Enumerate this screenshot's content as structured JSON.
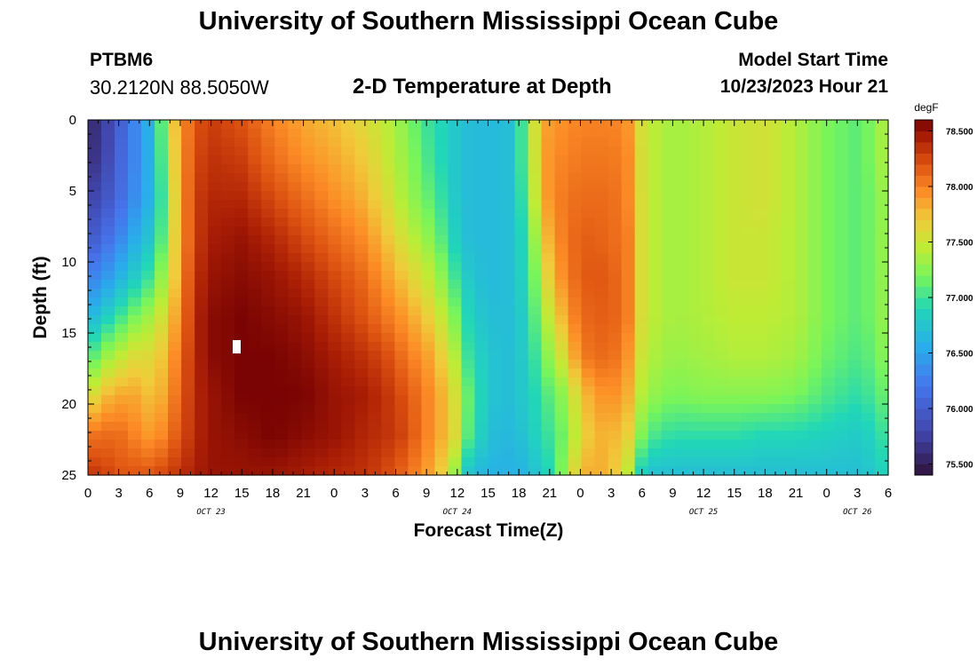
{
  "header": {
    "title": "University of Southern Mississippi Ocean Cube",
    "station_id": "PTBM6",
    "coordinates": "30.2120N  88.5050W",
    "chart_title": "2-D Temperature at Depth",
    "model_start_label": "Model Start Time",
    "model_start_value": "10/23/2023 Hour 21"
  },
  "footer": {
    "title": "University of Southern Mississippi Ocean Cube"
  },
  "chart_data": {
    "type": "heatmap",
    "title": "2-D Temperature at Depth",
    "xlabel": "Forecast Time(Z)",
    "ylabel": "Depth (ft)",
    "x_hours": [
      0,
      3,
      6,
      9,
      12,
      15,
      18,
      21,
      24,
      27,
      30,
      33,
      36,
      39,
      42,
      45,
      48,
      51,
      54,
      57,
      60,
      63,
      66,
      69,
      72,
      75,
      78
    ],
    "x_tick_labels": [
      "0",
      "3",
      "6",
      "9",
      "12",
      "15",
      "18",
      "21",
      "0",
      "3",
      "6",
      "9",
      "12",
      "15",
      "18",
      "21",
      "0",
      "3",
      "6",
      "9",
      "12",
      "15",
      "18",
      "21",
      "0",
      "3",
      "6"
    ],
    "date_labels": [
      {
        "label": "OCT 23",
        "hour": 12
      },
      {
        "label": "OCT 24",
        "hour": 36
      },
      {
        "label": "OCT 25",
        "hour": 60
      },
      {
        "label": "OCT 26",
        "hour": 75
      }
    ],
    "y_ticks": [
      0,
      5,
      10,
      15,
      20,
      25
    ],
    "ylim": [
      0,
      25
    ],
    "xlim": [
      0,
      78
    ],
    "colorbar": {
      "unit": "degF",
      "range": [
        75.4,
        78.6
      ],
      "tick_labels": [
        "78.500",
        "78.000",
        "77.500",
        "77.000",
        "76.500",
        "76.000",
        "75.500"
      ],
      "tick_values": [
        78.5,
        78.0,
        77.5,
        77.0,
        76.5,
        76.0,
        75.5
      ]
    },
    "columns": [
      {
        "t": 0,
        "temps": [
          75.55,
          75.6,
          75.75,
          75.95,
          76.25,
          76.6,
          77.0,
          77.5,
          78.05,
          78.35
        ]
      },
      {
        "t": 1.5,
        "temps": [
          75.7,
          75.75,
          75.9,
          76.1,
          76.4,
          76.8,
          77.3,
          77.75,
          78.1,
          78.3
        ]
      },
      {
        "t": 3,
        "temps": [
          76.0,
          76.05,
          76.1,
          76.3,
          76.6,
          77.0,
          77.45,
          77.85,
          78.1,
          78.2
        ]
      },
      {
        "t": 4.5,
        "temps": [
          76.3,
          76.3,
          76.35,
          76.55,
          76.8,
          77.2,
          77.6,
          77.85,
          78.0,
          78.2
        ]
      },
      {
        "t": 6,
        "temps": [
          76.6,
          76.6,
          76.6,
          76.75,
          77.0,
          77.35,
          77.6,
          77.75,
          77.9,
          78.2
        ]
      },
      {
        "t": 7,
        "temps": [
          77.0,
          76.95,
          76.9,
          77.0,
          77.25,
          77.5,
          77.7,
          77.8,
          77.95,
          78.25
        ]
      },
      {
        "t": 8,
        "temps": [
          77.6,
          77.5,
          77.4,
          77.45,
          77.5,
          77.7,
          77.85,
          77.95,
          78.1,
          78.3
        ]
      },
      {
        "t": 9,
        "temps": [
          77.9,
          77.9,
          77.9,
          77.9,
          77.95,
          78.0,
          78.1,
          78.15,
          78.2,
          78.35
        ]
      },
      {
        "t": 10.5,
        "temps": [
          78.2,
          78.25,
          78.3,
          78.3,
          78.35,
          78.4,
          78.4,
          78.4,
          78.4,
          78.45
        ]
      },
      {
        "t": 12,
        "temps": [
          78.3,
          78.35,
          78.4,
          78.45,
          78.5,
          78.55,
          78.55,
          78.5,
          78.5,
          78.5
        ]
      },
      {
        "t": 15,
        "temps": [
          78.2,
          78.3,
          78.4,
          78.5,
          78.55,
          78.6,
          78.6,
          78.6,
          78.55,
          78.5
        ]
      },
      {
        "t": 18,
        "temps": [
          78.0,
          78.1,
          78.25,
          78.4,
          78.5,
          78.55,
          78.6,
          78.6,
          78.6,
          78.5
        ]
      },
      {
        "t": 21,
        "temps": [
          77.85,
          77.95,
          78.1,
          78.25,
          78.4,
          78.5,
          78.55,
          78.6,
          78.55,
          78.45
        ]
      },
      {
        "t": 24,
        "temps": [
          77.75,
          77.85,
          77.95,
          78.1,
          78.25,
          78.35,
          78.45,
          78.5,
          78.5,
          78.4
        ]
      },
      {
        "t": 27,
        "temps": [
          77.6,
          77.7,
          77.8,
          77.95,
          78.1,
          78.2,
          78.35,
          78.45,
          78.4,
          78.35
        ]
      },
      {
        "t": 29,
        "temps": [
          77.45,
          77.5,
          77.6,
          77.75,
          77.9,
          78.05,
          78.25,
          78.35,
          78.35,
          78.25
        ]
      },
      {
        "t": 31,
        "temps": [
          77.25,
          77.3,
          77.35,
          77.5,
          77.7,
          77.9,
          78.05,
          78.2,
          78.25,
          78.1
        ]
      },
      {
        "t": 33,
        "temps": [
          77.0,
          77.05,
          77.15,
          77.3,
          77.5,
          77.7,
          77.9,
          78.0,
          78.0,
          77.9
        ]
      },
      {
        "t": 35,
        "temps": [
          76.85,
          76.85,
          76.9,
          77.0,
          77.2,
          77.4,
          77.6,
          77.75,
          77.75,
          77.6
        ]
      },
      {
        "t": 36,
        "temps": [
          76.75,
          76.75,
          76.75,
          76.8,
          76.95,
          77.15,
          77.35,
          77.5,
          77.55,
          77.2
        ]
      },
      {
        "t": 37,
        "temps": [
          76.7,
          76.7,
          76.7,
          76.7,
          76.8,
          76.9,
          77.0,
          77.15,
          77.1,
          76.75
        ]
      },
      {
        "t": 39,
        "temps": [
          76.65,
          76.65,
          76.65,
          76.65,
          76.65,
          76.7,
          76.75,
          76.75,
          76.7,
          76.6
        ]
      },
      {
        "t": 41,
        "temps": [
          76.7,
          76.7,
          76.7,
          76.7,
          76.7,
          76.7,
          76.7,
          76.7,
          76.65,
          76.6
        ]
      },
      {
        "t": 42,
        "temps": [
          76.9,
          76.9,
          76.85,
          76.8,
          76.8,
          76.75,
          76.75,
          76.75,
          76.7,
          76.6
        ]
      },
      {
        "t": 43,
        "temps": [
          77.3,
          77.3,
          77.25,
          77.1,
          77.0,
          76.95,
          76.9,
          76.85,
          76.8,
          76.65
        ]
      },
      {
        "t": 44,
        "temps": [
          77.75,
          77.7,
          77.65,
          77.5,
          77.35,
          77.2,
          77.05,
          76.95,
          76.9,
          76.8
        ]
      },
      {
        "t": 45,
        "temps": [
          77.9,
          77.95,
          77.95,
          77.85,
          77.7,
          77.5,
          77.3,
          77.1,
          77.0,
          76.9
        ]
      },
      {
        "t": 46.5,
        "temps": [
          77.95,
          78.0,
          78.05,
          78.05,
          78.0,
          77.85,
          77.6,
          77.3,
          77.2,
          77.3
        ]
      },
      {
        "t": 48,
        "temps": [
          78.0,
          78.05,
          78.1,
          78.15,
          78.15,
          78.1,
          78.0,
          77.7,
          77.6,
          77.8
        ]
      },
      {
        "t": 49.5,
        "temps": [
          78.0,
          78.05,
          78.1,
          78.15,
          78.2,
          78.15,
          78.1,
          77.9,
          77.8,
          77.85
        ]
      },
      {
        "t": 51,
        "temps": [
          78.0,
          78.05,
          78.1,
          78.1,
          78.15,
          78.15,
          78.1,
          77.95,
          77.8,
          77.75
        ]
      },
      {
        "t": 52.5,
        "temps": [
          77.95,
          78.0,
          78.0,
          78.05,
          78.05,
          78.05,
          77.95,
          77.85,
          77.7,
          77.5
        ]
      },
      {
        "t": 53.5,
        "temps": [
          77.7,
          77.75,
          77.8,
          77.8,
          77.8,
          77.8,
          77.7,
          77.6,
          77.45,
          77.1
        ]
      },
      {
        "t": 54,
        "temps": [
          77.55,
          77.55,
          77.55,
          77.55,
          77.55,
          77.55,
          77.5,
          77.4,
          77.2,
          76.8
        ]
      },
      {
        "t": 55,
        "temps": [
          77.45,
          77.45,
          77.45,
          77.45,
          77.45,
          77.45,
          77.4,
          77.3,
          77.05,
          76.7
        ]
      },
      {
        "t": 57,
        "temps": [
          77.35,
          77.35,
          77.35,
          77.35,
          77.35,
          77.35,
          77.3,
          77.2,
          76.95,
          76.7
        ]
      },
      {
        "t": 60,
        "temps": [
          77.4,
          77.4,
          77.4,
          77.4,
          77.4,
          77.4,
          77.35,
          77.25,
          76.95,
          76.7
        ]
      },
      {
        "t": 63,
        "temps": [
          77.5,
          77.5,
          77.5,
          77.5,
          77.5,
          77.45,
          77.4,
          77.25,
          76.95,
          76.7
        ]
      },
      {
        "t": 66,
        "temps": [
          77.55,
          77.55,
          77.55,
          77.5,
          77.5,
          77.45,
          77.4,
          77.25,
          76.9,
          76.7
        ]
      },
      {
        "t": 69,
        "temps": [
          77.4,
          77.4,
          77.4,
          77.4,
          77.4,
          77.4,
          77.35,
          77.2,
          76.9,
          76.7
        ]
      },
      {
        "t": 72,
        "temps": [
          77.2,
          77.2,
          77.2,
          77.2,
          77.2,
          77.2,
          77.15,
          77.05,
          76.85,
          76.7
        ]
      },
      {
        "t": 75,
        "temps": [
          77.1,
          77.1,
          77.1,
          77.1,
          77.1,
          77.1,
          77.05,
          76.95,
          76.8,
          76.7
        ]
      },
      {
        "t": 77,
        "temps": [
          77.25,
          77.25,
          77.2,
          77.2,
          77.2,
          77.2,
          77.15,
          77.05,
          76.9,
          76.8
        ]
      },
      {
        "t": 78,
        "temps": [
          77.55,
          77.5,
          77.45,
          77.45,
          77.4,
          77.4,
          77.35,
          77.25,
          77.1,
          76.95
        ]
      }
    ],
    "depth_samples": [
      0,
      2.8,
      5.6,
      8.3,
      11.1,
      13.9,
      16.7,
      19.4,
      22.2,
      25
    ]
  }
}
